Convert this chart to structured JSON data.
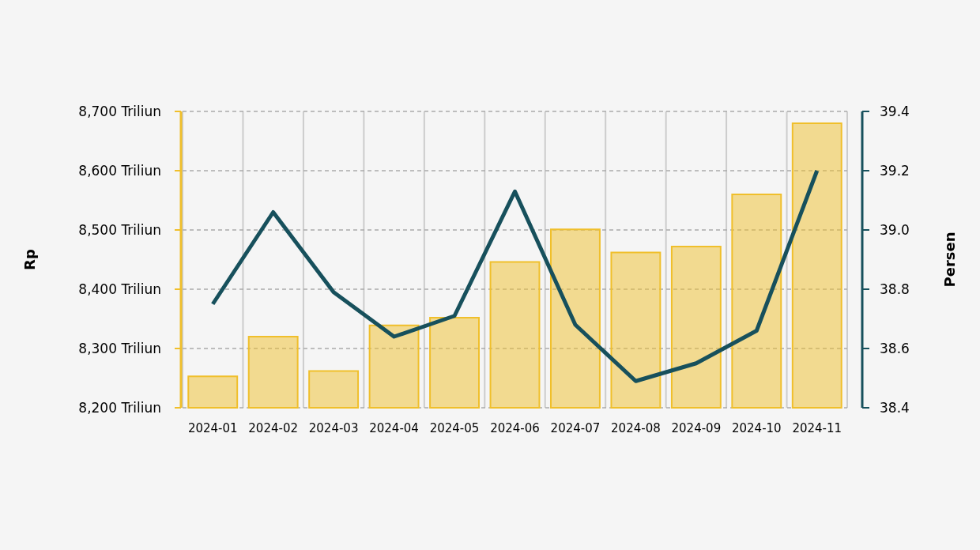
{
  "chart_data": {
    "type": "bar",
    "categories": [
      "2024-01",
      "2024-02",
      "2024-03",
      "2024-04",
      "2024-05",
      "2024-06",
      "2024-07",
      "2024-08",
      "2024-09",
      "2024-10",
      "2024-11"
    ],
    "series": [
      {
        "color": "#f0bf2b",
        "values": [
          8253,
          8320,
          8262,
          8339,
          8352,
          8446,
          8501,
          8462,
          8472,
          8560,
          8680
        ]
      },
      {
        "type": "line",
        "axis": "y2",
        "color": "#17505c",
        "values": [
          38.75,
          39.06,
          38.79,
          38.64,
          38.71,
          39.13,
          38.68,
          38.49,
          38.55,
          38.66,
          39.2
        ]
      }
    ],
    "ylabel": "Rp",
    "y2label": "Persen",
    "ylim": [
      8200,
      8700
    ],
    "yticks": [
      {
        "value": 8200,
        "label": "8,200 Triliun"
      },
      {
        "value": 8300,
        "label": "8,300 Triliun"
      },
      {
        "value": 8400,
        "label": "8,400 Triliun"
      },
      {
        "value": 8500,
        "label": "8,500 Triliun"
      },
      {
        "value": 8600,
        "label": "8,600 Triliun"
      },
      {
        "value": 8700,
        "label": "8,700 Triliun"
      }
    ],
    "y2lim": [
      38.4,
      39.4
    ],
    "y2ticks": [
      38.4,
      38.6,
      38.8,
      {
        "value": 39,
        "label": "39.0"
      },
      39.2,
      39.4
    ],
    "grid": true
  }
}
